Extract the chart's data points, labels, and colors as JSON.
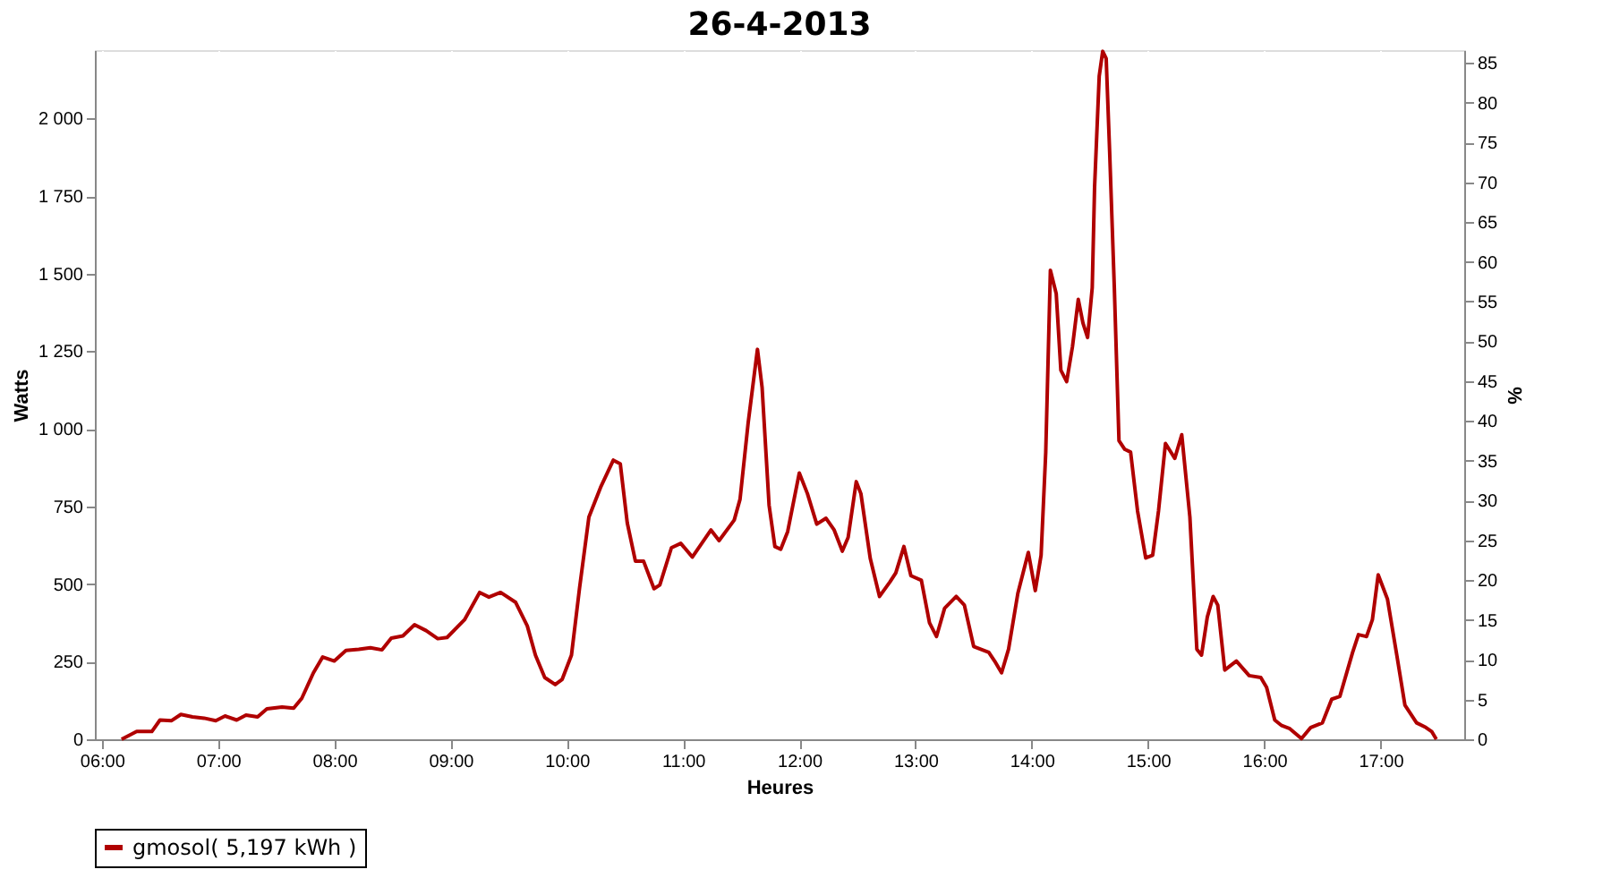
{
  "chart_data": {
    "type": "line",
    "title": "26-4-2013",
    "xlabel": "Heures",
    "ylabel": "Watts",
    "y2label": "%",
    "xlim": [
      5.94,
      17.72
    ],
    "xticks": [
      {
        "value": 6,
        "label": "06:00"
      },
      {
        "value": 7,
        "label": "07:00"
      },
      {
        "value": 8,
        "label": "08:00"
      },
      {
        "value": 9,
        "label": "09:00"
      },
      {
        "value": 10,
        "label": "10:00"
      },
      {
        "value": 11,
        "label": "11:00"
      },
      {
        "value": 12,
        "label": "12:00"
      },
      {
        "value": 13,
        "label": "13:00"
      },
      {
        "value": 14,
        "label": "14:00"
      },
      {
        "value": 15,
        "label": "15:00"
      },
      {
        "value": 16,
        "label": "16:00"
      },
      {
        "value": 17,
        "label": "17:00"
      }
    ],
    "ylim": [
      0,
      2220
    ],
    "yticks": [
      0,
      250,
      500,
      750,
      {
        "value": 1000,
        "label": "1 000"
      },
      {
        "value": 1250,
        "label": "1 250"
      },
      {
        "value": 1500,
        "label": "1 500"
      },
      {
        "value": 1750,
        "label": "1 750"
      },
      {
        "value": 2000,
        "label": "2 000"
      }
    ],
    "y2lim": [
      0,
      86.6
    ],
    "y2ticks": [
      0,
      5,
      10,
      15,
      20,
      25,
      30,
      35,
      40,
      45,
      50,
      55,
      60,
      65,
      70,
      75,
      80,
      85
    ],
    "grid": true,
    "legend": "bottom",
    "series": [
      {
        "name": "gmosol( 5,197 kWh )",
        "color": "#b00000",
        "x": [
          6.17,
          6.3,
          6.43,
          6.5,
          6.6,
          6.68,
          6.78,
          6.88,
          6.98,
          7.06,
          7.16,
          7.24,
          7.34,
          7.42,
          7.55,
          7.65,
          7.72,
          7.82,
          7.9,
          8.0,
          8.1,
          8.21,
          8.31,
          8.41,
          8.49,
          8.59,
          8.69,
          8.79,
          8.89,
          8.97,
          9.12,
          9.25,
          9.33,
          9.43,
          9.56,
          9.66,
          9.73,
          9.81,
          9.9,
          9.96,
          10.04,
          10.11,
          10.19,
          10.29,
          10.4,
          10.46,
          10.52,
          10.59,
          10.66,
          10.75,
          10.8,
          10.9,
          10.98,
          11.08,
          11.24,
          11.31,
          11.44,
          11.49,
          11.56,
          11.64,
          11.68,
          11.74,
          11.79,
          11.84,
          11.9,
          12.0,
          12.07,
          12.15,
          12.23,
          12.3,
          12.37,
          12.42,
          12.49,
          12.53,
          12.61,
          12.69,
          12.78,
          12.83,
          12.9,
          12.96,
          13.05,
          13.12,
          13.18,
          13.25,
          13.35,
          13.42,
          13.5,
          13.63,
          13.68,
          13.74,
          13.8,
          13.88,
          13.97,
          14.03,
          14.08,
          14.12,
          14.16,
          14.21,
          14.25,
          14.3,
          14.35,
          14.4,
          14.44,
          14.48,
          14.52,
          14.54,
          14.58,
          14.61,
          14.64,
          14.67,
          14.71,
          14.75,
          14.8,
          14.85,
          14.91,
          14.98,
          15.04,
          15.09,
          15.15,
          15.23,
          15.29,
          15.36,
          15.42,
          15.46,
          15.51,
          15.56,
          15.6,
          15.66,
          15.76,
          15.87,
          15.97,
          16.02,
          16.09,
          16.15,
          16.22,
          16.32,
          16.4,
          16.5,
          16.58,
          16.65,
          16.76,
          16.81,
          16.88,
          16.93,
          16.98,
          17.06,
          17.14,
          17.21,
          17.31,
          17.39,
          17.44,
          17.48
        ],
        "values": [
          0,
          25,
          25,
          62,
          60,
          80,
          72,
          68,
          60,
          75,
          62,
          78,
          72,
          98,
          104,
          100,
          132,
          214,
          265,
          252,
          286,
          290,
          295,
          288,
          326,
          333,
          369,
          350,
          324,
          328,
          385,
          473,
          458,
          473,
          441,
          365,
          271,
          199,
          176,
          193,
          271,
          489,
          716,
          811,
          899,
          887,
          697,
          574,
          574,
          485,
          497,
          617,
          631,
          587,
          674,
          640,
          706,
          773,
          1019,
          1256,
          1133,
          754,
          621,
          612,
          669,
          858,
          791,
          693,
          712,
          674,
          606,
          650,
          830,
          791,
          583,
          460,
          507,
          536,
          621,
          527,
          512,
          375,
          331,
          422,
          460,
          432,
          299,
          280,
          252,
          214,
          290,
          470,
          602,
          479,
          593,
          924,
          1511,
          1436,
          1189,
          1152,
          1265,
          1417,
          1341,
          1294,
          1455,
          1777,
          2136,
          2216,
          2193,
          1890,
          1455,
          962,
          934,
          925,
          735,
          584,
          593,
          735,
          953,
          905,
          981,
          716,
          290,
          271,
          394,
          460,
          432,
          223,
          252,
          205,
          199,
          167,
          62,
          44,
          34,
          2,
          38,
          53,
          129,
          138,
          280,
          337,
          331,
          385,
          530,
          451,
          271,
          110,
          53,
          38,
          25,
          0
        ]
      }
    ]
  }
}
